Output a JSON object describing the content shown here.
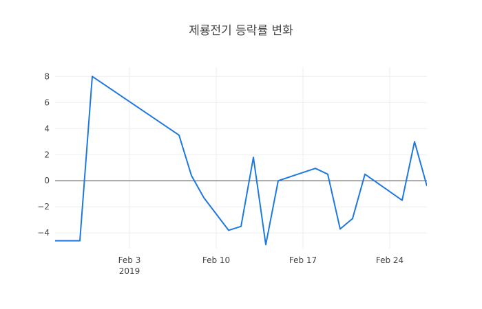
{
  "chart_data": {
    "type": "line",
    "title": "제룡전기 등락률 변화",
    "xlabel": "",
    "ylabel": "",
    "x_tick_labels": [
      {
        "date": "2019-02-03",
        "label": "Feb 3",
        "sublabel": "2019"
      },
      {
        "date": "2019-02-10",
        "label": "Feb 10",
        "sublabel": ""
      },
      {
        "date": "2019-02-17",
        "label": "Feb 17",
        "sublabel": ""
      },
      {
        "date": "2019-02-24",
        "label": "Feb 24",
        "sublabel": ""
      }
    ],
    "y_ticks": [
      -4,
      -2,
      0,
      2,
      4,
      6,
      8
    ],
    "y_tick_labels": [
      "−4",
      "−2",
      "0",
      "2",
      "4",
      "6",
      "8"
    ],
    "xlim": [
      "2019-01-28",
      "2019-02-26"
    ],
    "ylim": [
      -5.2,
      8.7
    ],
    "grid": true,
    "zero_line": true,
    "series": [
      {
        "color": "#1f77e0",
        "points": [
          {
            "x": "2019-01-28",
            "y": -4.6
          },
          {
            "x": "2019-01-29",
            "y": -4.6
          },
          {
            "x": "2019-01-30",
            "y": -4.6
          },
          {
            "x": "2019-01-31",
            "y": 8.0
          },
          {
            "x": "2019-02-07",
            "y": 3.5
          },
          {
            "x": "2019-02-08",
            "y": 0.4
          },
          {
            "x": "2019-02-09",
            "y": -1.3
          },
          {
            "x": "2019-02-11",
            "y": -3.8
          },
          {
            "x": "2019-02-12",
            "y": -3.5
          },
          {
            "x": "2019-02-13",
            "y": 1.8
          },
          {
            "x": "2019-02-14",
            "y": -4.9
          },
          {
            "x": "2019-02-15",
            "y": 0.0
          },
          {
            "x": "2019-02-18",
            "y": 0.95
          },
          {
            "x": "2019-02-19",
            "y": 0.5
          },
          {
            "x": "2019-02-20",
            "y": -3.7
          },
          {
            "x": "2019-02-21",
            "y": -2.9
          },
          {
            "x": "2019-02-22",
            "y": 0.5
          },
          {
            "x": "2019-02-25",
            "y": -1.5
          },
          {
            "x": "2019-02-26",
            "y": 3.0
          },
          {
            "x": "2019-02-27",
            "y": -0.4
          }
        ]
      }
    ]
  }
}
